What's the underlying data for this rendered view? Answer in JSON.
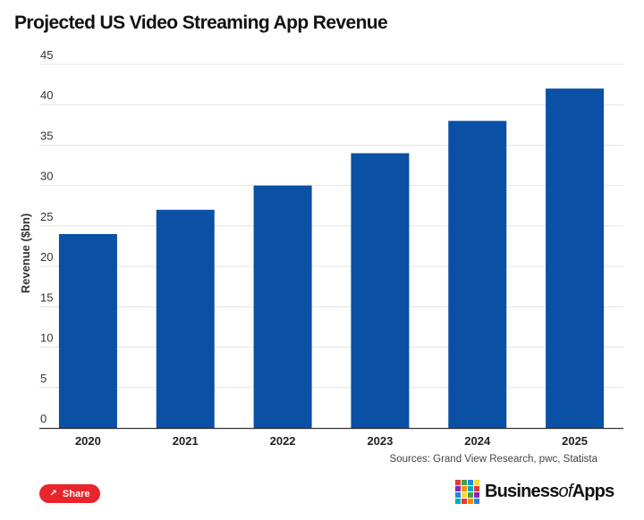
{
  "title": "Projected US Video Streaming App Revenue",
  "chart_data": {
    "type": "bar",
    "categories": [
      "2020",
      "2021",
      "2022",
      "2023",
      "2024",
      "2025"
    ],
    "values": [
      24,
      27,
      30,
      34,
      38,
      42
    ],
    "ylabel": "Revenue ($bn)",
    "xlabel": "",
    "ylim": [
      0,
      45
    ],
    "yticks": [
      "0",
      "5",
      "10",
      "15",
      "20",
      "25",
      "30",
      "35",
      "40",
      "45"
    ],
    "bar_color": "#0a50a5",
    "grid": true
  },
  "source": "Sources: Grand View Research, pwc, Statista",
  "share": {
    "label": "Share",
    "icon": "share-icon"
  },
  "logo": {
    "part1": "Business",
    "part2": "of",
    "part3": "Apps",
    "mosaic_colors": [
      "#e53935",
      "#43a047",
      "#1e88e5",
      "#fdd835",
      "#8e24aa",
      "#fb8c00",
      "#00acc1",
      "#e53935",
      "#1e88e5",
      "#fdd835",
      "#43a047",
      "#8e24aa",
      "#00acc1",
      "#e53935",
      "#fb8c00",
      "#1e88e5"
    ]
  }
}
